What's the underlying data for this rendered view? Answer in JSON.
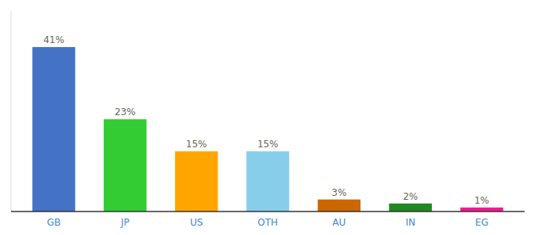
{
  "chart_data": {
    "type": "bar",
    "categories": [
      "GB",
      "JP",
      "US",
      "OTH",
      "AU",
      "IN",
      "EG"
    ],
    "values": [
      41,
      23,
      15,
      15,
      3,
      2,
      1
    ],
    "value_labels": [
      "41%",
      "23%",
      "15%",
      "15%",
      "3%",
      "2%",
      "1%"
    ],
    "colors": [
      "#4472c4",
      "#33cc33",
      "#ffa500",
      "#87ceeb",
      "#cc6600",
      "#228822",
      "#ff1493"
    ],
    "ylim": [
      0,
      50
    ],
    "data_labels": true,
    "tick_labels": "x",
    "grid": false
  }
}
